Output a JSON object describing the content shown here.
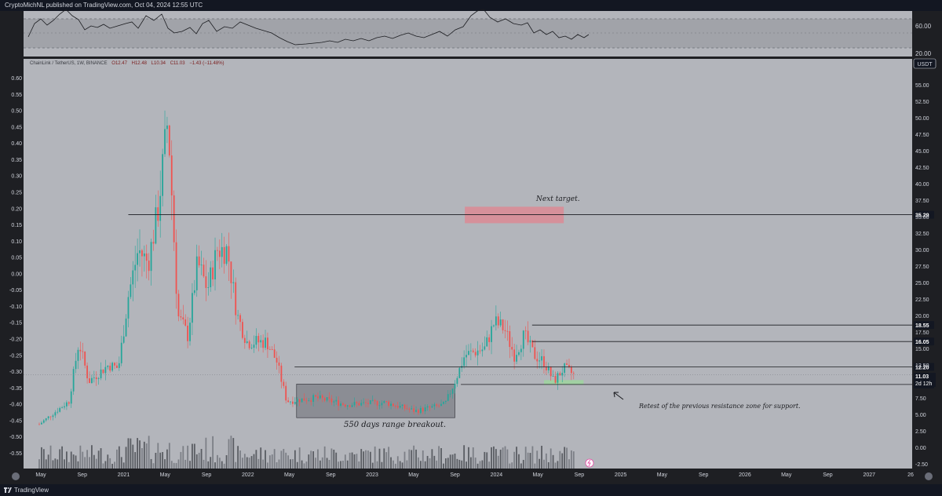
{
  "header": {
    "publisher_text": "CryptoMichNL published on TradingView.com, Oct 04, 2024 12:55 UTC"
  },
  "footer": {
    "brand": "TradingView"
  },
  "symbol": {
    "info_prefix": "ChainLink / TetherUS, 1W, BINANCE",
    "open": "O12.47",
    "high": "H12.48",
    "low": "L10.34",
    "close": "C11.03",
    "change": "−1.43 (−11.48%)",
    "currency": "USDT"
  },
  "price_badge": {
    "price": "11.03",
    "countdown": "2d 12h"
  },
  "colors": {
    "up": "#26a69a",
    "down": "#ef5350",
    "background": "#b3b5bb",
    "resistance_zone": "#d98c97",
    "support_zone": "#9fd3a0",
    "range_box": "#7d8087"
  },
  "rsi": {
    "ticks": [
      "60.00",
      "20.00"
    ]
  },
  "annotations": {
    "next_target": "Next target.",
    "range": "550 days range breakout.",
    "retest": "Retest of the previous resistance zone for support."
  },
  "chart_data": {
    "type": "candlestick",
    "title": "ChainLink / TetherUS, 1W, BINANCE",
    "y_right": {
      "range": [
        -2.5,
        60
      ],
      "ticks": [
        "-2.50",
        "0.00",
        "2.50",
        "5.00",
        "7.50",
        "10.00",
        "12.50",
        "15.00",
        "17.50",
        "20.00",
        "22.50",
        "25.00",
        "27.50",
        "30.00",
        "32.50",
        "35.00",
        "37.50",
        "40.00",
        "42.50",
        "45.00",
        "47.50",
        "50.00",
        "52.50",
        "55.00"
      ]
    },
    "y_left": {
      "range": [
        -0.6,
        0.6
      ],
      "ticks": [
        "0.60",
        "0.55",
        "0.50",
        "0.45",
        "0.40",
        "0.35",
        "0.30",
        "0.25",
        "0.20",
        "0.15",
        "0.10",
        "0.05",
        "0.00",
        "-0.05",
        "-0.10",
        "-0.15",
        "-0.20",
        "-0.25",
        "-0.30",
        "-0.35",
        "-0.40",
        "-0.45",
        "-0.50",
        "-0.55"
      ]
    },
    "x_ticks": [
      "May",
      "Sep",
      "2021",
      "May",
      "Sep",
      "2022",
      "May",
      "Sep",
      "2023",
      "May",
      "Sep",
      "2024",
      "May",
      "Sep",
      "2025",
      "May",
      "Sep",
      "2026",
      "May",
      "Sep",
      "2027",
      "26"
    ],
    "levels": [
      {
        "label": "35.29",
        "value": 35.29
      },
      {
        "label": "18.55",
        "value": 18.55
      },
      {
        "label": "16.05",
        "value": 16.05
      },
      {
        "label": "12.20",
        "value": 12.2
      },
      {
        "label": "9.54",
        "value": 9.54
      }
    ],
    "zones": [
      {
        "name": "next target",
        "from_date": "2023-11",
        "to_date": "2024-09",
        "low": 34,
        "high": 36.5
      },
      {
        "name": "support retest",
        "from_date": "2024-07",
        "to_date": "2024-11",
        "low": 9.5,
        "high": 10.2
      },
      {
        "name": "range",
        "from_date": "2022-06",
        "to_date": "2023-10",
        "low": 4.5,
        "high": 9.6
      }
    ],
    "price_path": [
      {
        "date": "2020-04",
        "close": 3.5
      },
      {
        "date": "2020-07",
        "close": 7.0
      },
      {
        "date": "2020-08",
        "close": 16.0
      },
      {
        "date": "2020-09",
        "close": 10.0
      },
      {
        "date": "2020-11",
        "close": 12.5
      },
      {
        "date": "2020-12",
        "close": 12.0
      },
      {
        "date": "2021-01",
        "close": 23.0
      },
      {
        "date": "2021-02",
        "close": 30.0
      },
      {
        "date": "2021-03",
        "close": 28.0
      },
      {
        "date": "2021-04",
        "close": 36.0
      },
      {
        "date": "2021-05",
        "close": 50.0
      },
      {
        "date": "2021-06",
        "close": 20.0
      },
      {
        "date": "2021-07",
        "close": 17.0
      },
      {
        "date": "2021-08",
        "close": 28.0
      },
      {
        "date": "2021-09",
        "close": 24.0
      },
      {
        "date": "2021-10",
        "close": 30.0
      },
      {
        "date": "2021-11",
        "close": 30.0
      },
      {
        "date": "2021-12",
        "close": 20.0
      },
      {
        "date": "2022-01",
        "close": 16.0
      },
      {
        "date": "2022-03",
        "close": 16.0
      },
      {
        "date": "2022-04",
        "close": 13.0
      },
      {
        "date": "2022-05",
        "close": 7.0
      },
      {
        "date": "2022-08",
        "close": 7.5
      },
      {
        "date": "2022-11",
        "close": 6.5
      },
      {
        "date": "2023-03",
        "close": 6.8
      },
      {
        "date": "2023-06",
        "close": 5.5
      },
      {
        "date": "2023-09",
        "close": 6.5
      },
      {
        "date": "2023-10",
        "close": 10.0
      },
      {
        "date": "2023-11",
        "close": 14.0
      },
      {
        "date": "2023-12",
        "close": 14.5
      },
      {
        "date": "2024-01",
        "close": 15.0
      },
      {
        "date": "2024-02",
        "close": 19.0
      },
      {
        "date": "2024-03",
        "close": 18.0
      },
      {
        "date": "2024-04",
        "close": 14.0
      },
      {
        "date": "2024-05",
        "close": 17.0
      },
      {
        "date": "2024-06",
        "close": 14.0
      },
      {
        "date": "2024-07",
        "close": 13.0
      },
      {
        "date": "2024-08",
        "close": 10.0
      },
      {
        "date": "2024-09",
        "close": 12.0
      },
      {
        "date": "2024-10",
        "close": 11.03
      }
    ]
  }
}
